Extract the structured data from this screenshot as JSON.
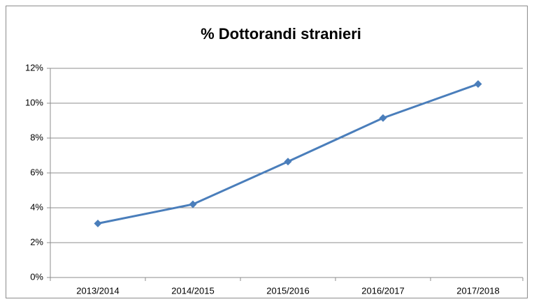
{
  "chart_data": {
    "type": "line",
    "title": "% Dottorandi stranieri",
    "categories": [
      "2013/2014",
      "2014/2015",
      "2015/2016",
      "2016/2017",
      "2017/2018"
    ],
    "series": [
      {
        "name": "% Dottorandi stranieri",
        "color": "#4a7ebb",
        "values": [
          3.1,
          4.2,
          6.65,
          9.15,
          11.1
        ]
      }
    ],
    "ylim": [
      0,
      12
    ],
    "yticks": [
      {
        "value": 0,
        "label": "0%"
      },
      {
        "value": 2,
        "label": "2%"
      },
      {
        "value": 4,
        "label": "4%"
      },
      {
        "value": 6,
        "label": "6%"
      },
      {
        "value": 8,
        "label": "8%"
      },
      {
        "value": 10,
        "label": "10%"
      },
      {
        "value": 12,
        "label": "12%"
      }
    ],
    "grid": true
  }
}
